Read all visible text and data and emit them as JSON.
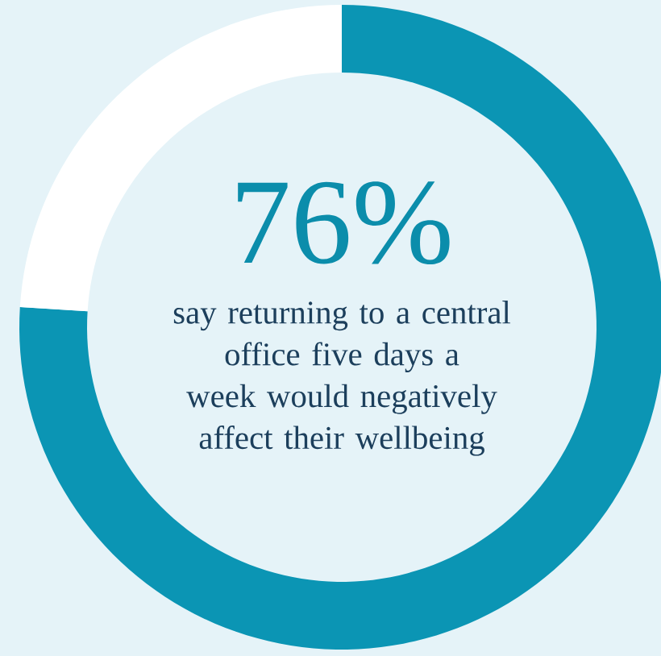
{
  "chart_data": {
    "type": "donut",
    "categories": [
      null,
      null
    ],
    "values": [
      76,
      24
    ],
    "colors": [
      "#0b95b4",
      "#ffffff"
    ],
    "value_labels": [
      "76%",
      null
    ],
    "annotations": [
      "say returning to a central office five days a week would negatively affect their wellbeing"
    ]
  }
}
